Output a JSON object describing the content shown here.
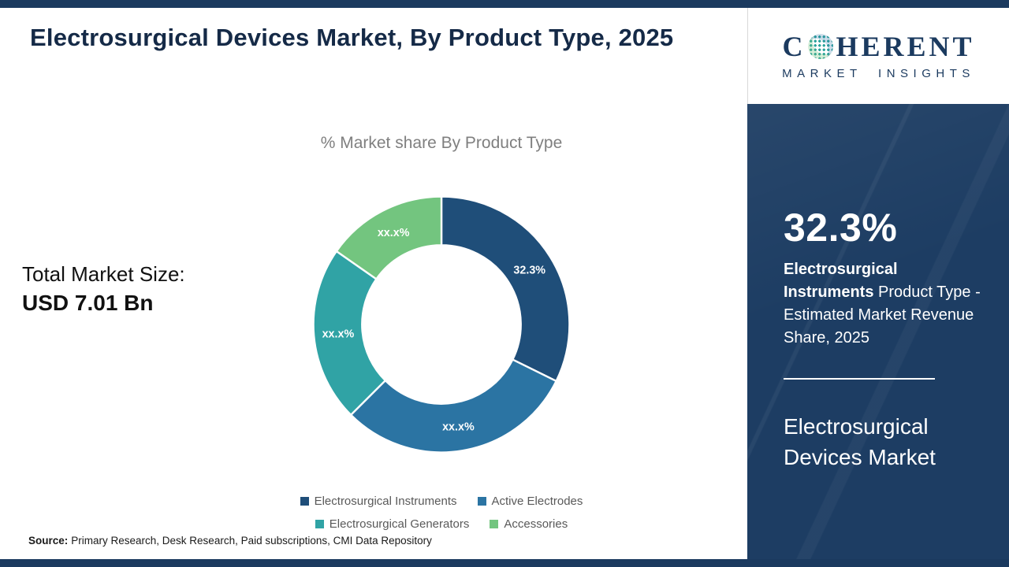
{
  "page": {
    "title": "Electrosurgical Devices Market, By Product Type, 2025",
    "source_label": "Source:",
    "source_text": "Primary Research, Desk Research, Paid subscriptions, CMI Data Repository"
  },
  "stats": {
    "label": "Total Market Size:",
    "value": "USD 7.01 Bn"
  },
  "chart_data": {
    "type": "pie",
    "donut": true,
    "title": "% Market share By Product Type",
    "categories": [
      "Electrosurgical Instruments",
      "Active Electrodes",
      "Electrosurgical Generators",
      "Accessories"
    ],
    "values": [
      32.3,
      30.2,
      22.2,
      15.3
    ],
    "slice_labels": [
      "32.3%",
      "xx.x%",
      "xx.x%",
      "xx.x%"
    ],
    "colors": [
      "#1f4e79",
      "#2b74a3",
      "#30a3a5",
      "#73c57f"
    ],
    "legend_position": "bottom",
    "inner_radius_ratio": 0.62,
    "start_angle_deg": -90,
    "clockwise": true
  },
  "side_panel": {
    "stat_value": "32.3%",
    "desc_bold": "Electrosurgical Instruments",
    "desc_rest": " Product Type - Estimated Market Revenue Share, 2025",
    "market_name": "Electrosurgical Devices Market"
  },
  "logo": {
    "prefix": "C",
    "suffix": "HERENT",
    "tagline": "MARKET INSIGHTS"
  },
  "colors": {
    "navy": "#1b3a5f",
    "panel_navy": "#1d3d63",
    "title_navy": "#152a47",
    "text_gray": "#595959",
    "chart_title_gray": "#7f7f7f",
    "globe_teal": "#2aa39b"
  }
}
